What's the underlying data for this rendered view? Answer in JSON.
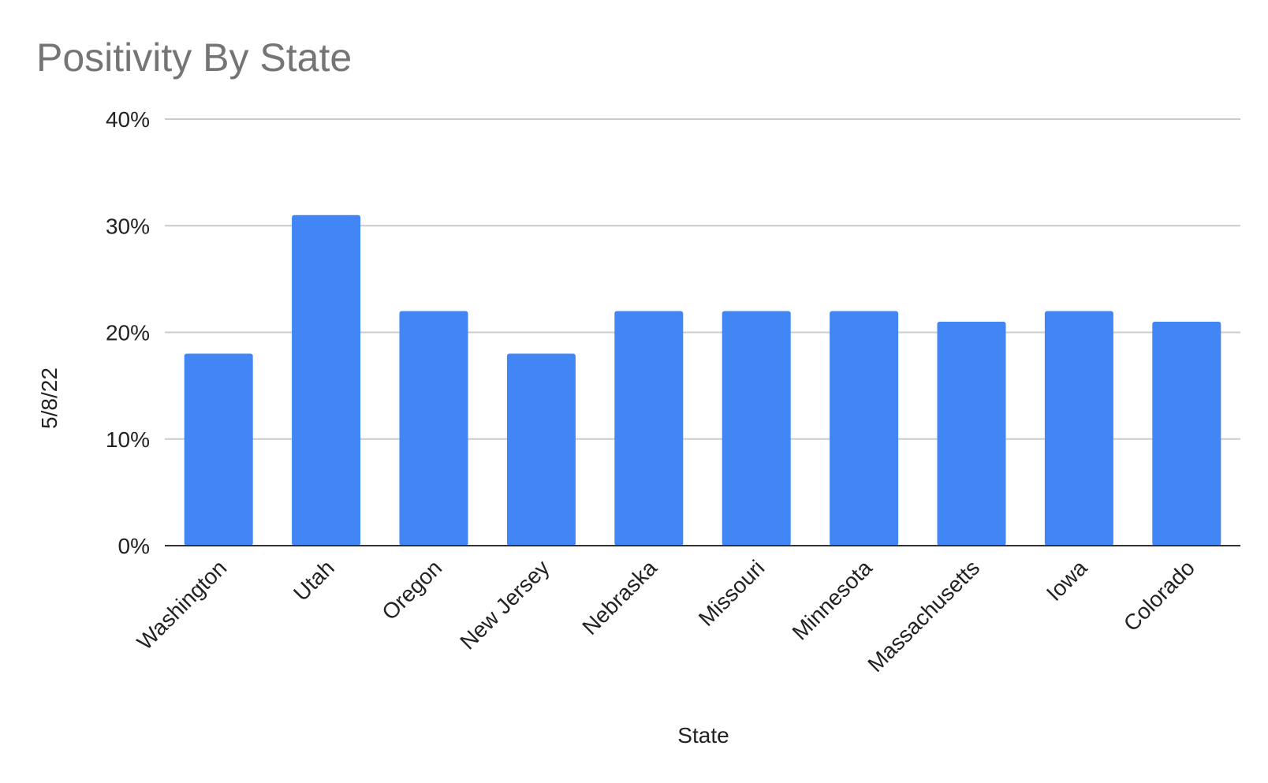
{
  "chart_data": {
    "type": "bar",
    "title": "Positivity By State",
    "xlabel": "State",
    "ylabel": "5/8/22",
    "categories": [
      "Washington",
      "Utah",
      "Oregon",
      "New Jersey",
      "Nebraska",
      "Missouri",
      "Minnesota",
      "Massachusetts",
      "Iowa",
      "Colorado"
    ],
    "series": [
      {
        "values": [
          18,
          31,
          22,
          18,
          22,
          22,
          22,
          21,
          22,
          21
        ]
      }
    ],
    "ylim": [
      0,
      40
    ],
    "yticks": [
      0,
      10,
      20,
      30,
      40
    ],
    "ytick_labels": [
      "0%",
      "10%",
      "20%",
      "30%",
      "40%"
    ],
    "grid": true,
    "legend": "none",
    "colors": {
      "bar": "#4285f4",
      "grid": "#cccccc",
      "baseline": "#333333",
      "title": "#757575",
      "text": "#222222"
    }
  }
}
